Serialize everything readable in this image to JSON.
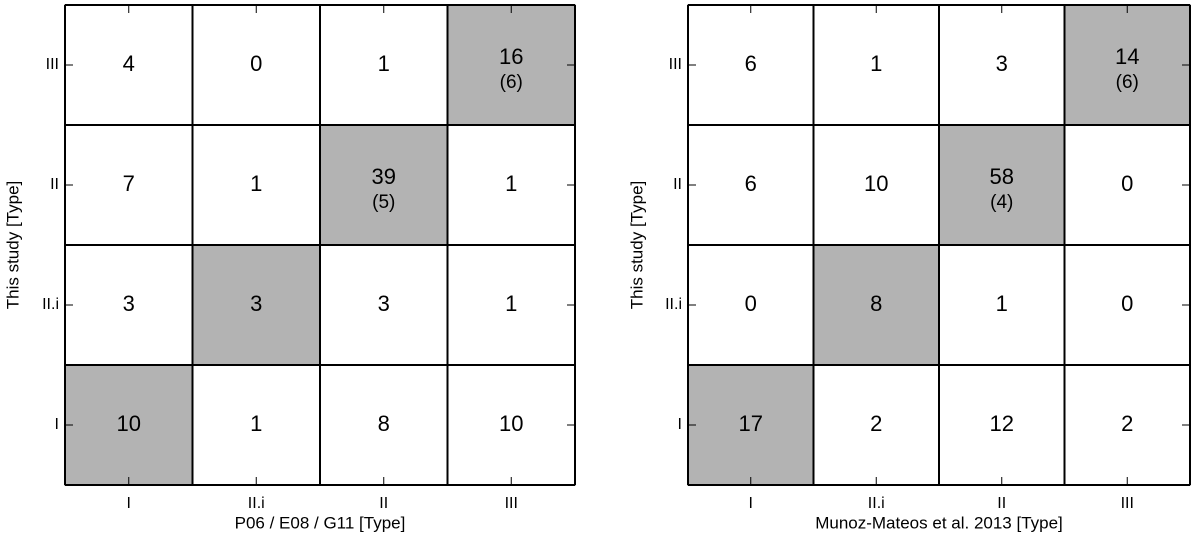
{
  "chart_data": [
    {
      "type": "matrix",
      "xlabel": "P06 / E08 / G11 [Type]",
      "ylabel": "This study [Type]",
      "x_categories": [
        "I",
        "II.i",
        "II",
        "III"
      ],
      "y_categories": [
        "III",
        "II",
        "II.i",
        "I"
      ],
      "values": [
        [
          4,
          0,
          1,
          16
        ],
        [
          7,
          1,
          39,
          1
        ],
        [
          3,
          3,
          3,
          1
        ],
        [
          10,
          1,
          8,
          10
        ]
      ],
      "secondary_values": [
        [
          null,
          null,
          null,
          6
        ],
        [
          null,
          null,
          5,
          null
        ],
        [
          null,
          null,
          null,
          null
        ],
        [
          null,
          null,
          null,
          null
        ]
      ],
      "secondary_value_labels": [
        [
          null,
          null,
          null,
          "(6)"
        ],
        [
          null,
          null,
          "(5)",
          null
        ],
        [
          null,
          null,
          null,
          null
        ],
        [
          null,
          null,
          null,
          null
        ]
      ],
      "highlight_color": "#b3b3b3"
    },
    {
      "type": "matrix",
      "xlabel": "Munoz-Mateos et al. 2013 [Type]",
      "ylabel": "This study [Type]",
      "x_categories": [
        "I",
        "II.i",
        "II",
        "III"
      ],
      "y_categories": [
        "III",
        "II",
        "II.i",
        "I"
      ],
      "values": [
        [
          6,
          1,
          3,
          14
        ],
        [
          6,
          10,
          58,
          0
        ],
        [
          0,
          8,
          1,
          0
        ],
        [
          17,
          2,
          12,
          2
        ]
      ],
      "secondary_values": [
        [
          null,
          null,
          null,
          6
        ],
        [
          null,
          null,
          4,
          null
        ],
        [
          null,
          null,
          null,
          null
        ],
        [
          null,
          null,
          null,
          null
        ]
      ],
      "secondary_value_labels": [
        [
          null,
          null,
          null,
          "(6)"
        ],
        [
          null,
          null,
          "(4)",
          null
        ],
        [
          null,
          null,
          null,
          null
        ],
        [
          null,
          null,
          null,
          null
        ]
      ],
      "highlight_color": "#b3b3b3"
    }
  ]
}
